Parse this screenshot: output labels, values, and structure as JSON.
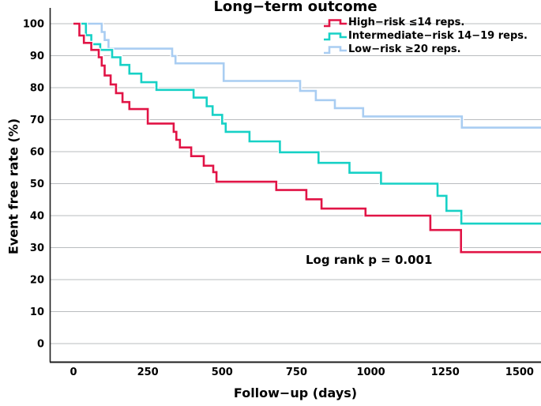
{
  "title": "Long−term outcome",
  "y_axis": {
    "label": "Event free rate (%)",
    "ticks": [
      100,
      90,
      80,
      70,
      60,
      50,
      40,
      30,
      20,
      10,
      0
    ]
  },
  "x_axis": {
    "label": "Follow−up (days)",
    "ticks": [
      0,
      250,
      500,
      750,
      1000,
      1250,
      1500
    ]
  },
  "annotation": "Log rank p = 0.001",
  "legend": {
    "items": [
      {
        "label": "High−risk ≤14 reps.",
        "color": "#e11446"
      },
      {
        "label": "Intermediate−risk 14−19 reps.",
        "color": "#17d1c6"
      },
      {
        "label": "Low−risk ≥20 reps.",
        "color": "#a9cdf2"
      }
    ]
  },
  "colors": {
    "grid": "#b9bcbf",
    "axis": "#1e1e1e",
    "background": "#ffffff",
    "curve_casing": "#ffffff"
  },
  "chart_data": {
    "type": "line",
    "step": true,
    "title": "Long−term outcome",
    "xlabel": "Follow−up (days)",
    "ylabel": "Event free rate (%)",
    "xlim": [
      -80,
      1575
    ],
    "ylim": [
      0,
      100
    ],
    "x_ticks": [
      0,
      250,
      500,
      750,
      1000,
      1250,
      1500
    ],
    "y_ticks": [
      0,
      10,
      20,
      30,
      40,
      50,
      60,
      70,
      80,
      90,
      100
    ],
    "grid": "horizontal",
    "legend_position": "top-right-inside",
    "annotation_text": "Log rank p = 0.001",
    "series": [
      {
        "name": "High−risk ≤14 reps.",
        "color": "#e11446",
        "points": [
          [
            0,
            100
          ],
          [
            20,
            96.3
          ],
          [
            35,
            94.0
          ],
          [
            60,
            91.8
          ],
          [
            85,
            89.5
          ],
          [
            95,
            86.9
          ],
          [
            105,
            83.8
          ],
          [
            125,
            81.0
          ],
          [
            143,
            78.3
          ],
          [
            165,
            75.5
          ],
          [
            188,
            73.3
          ],
          [
            250,
            68.8
          ],
          [
            337,
            66.2
          ],
          [
            346,
            63.7
          ],
          [
            358,
            61.3
          ],
          [
            396,
            58.6
          ],
          [
            438,
            55.6
          ],
          [
            470,
            53.6
          ],
          [
            481,
            50.6
          ],
          [
            682,
            48.0
          ],
          [
            783,
            45.1
          ],
          [
            834,
            42.2
          ],
          [
            982,
            40.0
          ],
          [
            1200,
            35.5
          ],
          [
            1303,
            28.6
          ],
          [
            1572,
            28.6
          ]
        ]
      },
      {
        "name": "Intermediate−risk 14−19 reps.",
        "color": "#17d1c6",
        "points": [
          [
            0,
            100
          ],
          [
            42,
            96.4
          ],
          [
            60,
            93.6
          ],
          [
            90,
            91.8
          ],
          [
            130,
            89.5
          ],
          [
            158,
            87.1
          ],
          [
            188,
            84.4
          ],
          [
            228,
            81.7
          ],
          [
            279,
            79.3
          ],
          [
            404,
            76.9
          ],
          [
            448,
            74.2
          ],
          [
            468,
            71.5
          ],
          [
            500,
            68.8
          ],
          [
            512,
            66.2
          ],
          [
            592,
            63.2
          ],
          [
            694,
            59.8
          ],
          [
            824,
            56.5
          ],
          [
            928,
            53.4
          ],
          [
            1034,
            50.0
          ],
          [
            1224,
            46.2
          ],
          [
            1254,
            41.5
          ],
          [
            1304,
            37.5
          ],
          [
            1572,
            37.5
          ]
        ]
      },
      {
        "name": "Low−risk ≥20 reps.",
        "color": "#a9cdf2",
        "points": [
          [
            0,
            100
          ],
          [
            95,
            97.4
          ],
          [
            105,
            94.9
          ],
          [
            118,
            92.2
          ],
          [
            332,
            89.9
          ],
          [
            343,
            87.6
          ],
          [
            505,
            82.1
          ],
          [
            762,
            79.0
          ],
          [
            815,
            76.1
          ],
          [
            879,
            73.6
          ],
          [
            974,
            71.0
          ],
          [
            1306,
            67.5
          ],
          [
            1572,
            67.5
          ]
        ]
      }
    ]
  }
}
